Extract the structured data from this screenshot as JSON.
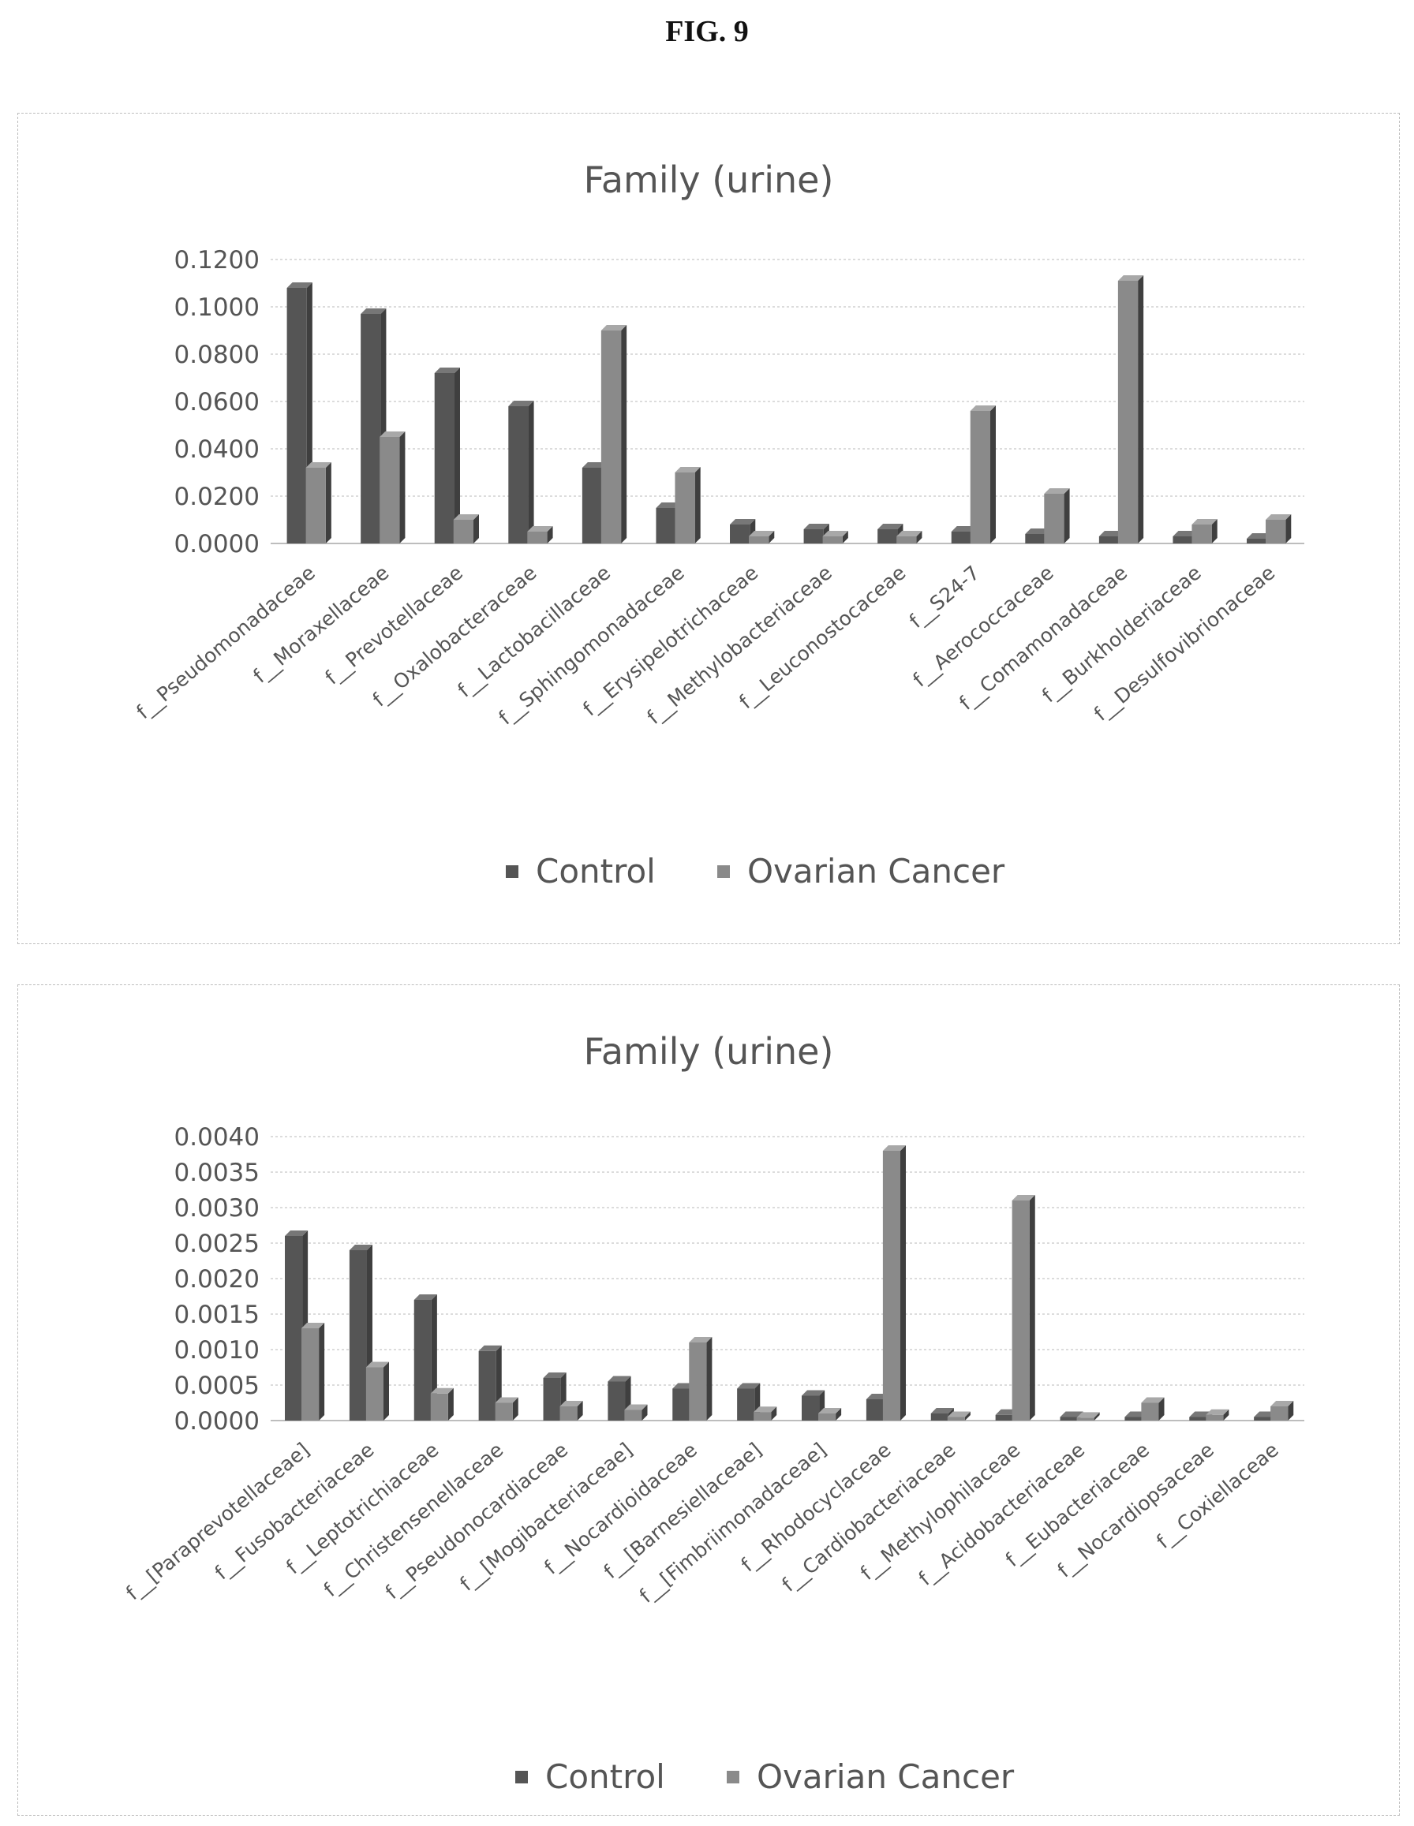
{
  "figure_label": "FIG. 9",
  "colors": {
    "control": "#555555",
    "ovarian_cancer": "#8a8a8a",
    "grid": "#d0d0d0",
    "text": "#555555"
  },
  "chart_data": [
    {
      "type": "bar",
      "title": "Family (urine)",
      "xlabel": "",
      "ylabel": "",
      "ylim": [
        0,
        0.12
      ],
      "yticks": [
        "0.0000",
        "0.0200",
        "0.0400",
        "0.0600",
        "0.0800",
        "0.1000",
        "0.1200"
      ],
      "grid": true,
      "legend_position": "bottom",
      "categories": [
        "f__Pseudomonadaceae",
        "f__Moraxellaceae",
        "f__Prevotellaceae",
        "f__Oxalobacteraceae",
        "f__Lactobacillaceae",
        "f__Sphingomonadaceae",
        "f__Erysipelotrichaceae",
        "f__Methylobacteriaceae",
        "f__Leuconostocaceae",
        "f__S24-7",
        "f__Aerococcaceae",
        "f__Comamonadaceae",
        "f__Burkholderiaceae",
        "f__Desulfovibrionaceae"
      ],
      "series": [
        {
          "name": "Control",
          "values": [
            0.108,
            0.097,
            0.072,
            0.058,
            0.032,
            0.015,
            0.008,
            0.006,
            0.006,
            0.005,
            0.004,
            0.003,
            0.003,
            0.002
          ]
        },
        {
          "name": "Ovarian Cancer",
          "values": [
            0.032,
            0.045,
            0.01,
            0.005,
            0.09,
            0.03,
            0.003,
            0.003,
            0.003,
            0.056,
            0.021,
            0.111,
            0.008,
            0.01
          ]
        }
      ]
    },
    {
      "type": "bar",
      "title": "Family (urine)",
      "xlabel": "",
      "ylabel": "",
      "ylim": [
        0,
        0.004
      ],
      "yticks": [
        "0.0000",
        "0.0005",
        "0.0010",
        "0.0015",
        "0.0020",
        "0.0025",
        "0.0030",
        "0.0035",
        "0.0040"
      ],
      "grid": true,
      "legend_position": "bottom",
      "categories": [
        "f__[Paraprevotellaceae]",
        "f__Fusobacteriaceae",
        "f__Leptotrichiaceae",
        "f__Christensenellaceae",
        "f__Pseudonocardiaceae",
        "f__[Mogibacteriaceae]",
        "f__Nocardioidaceae",
        "f__[Barnesiellaceae]",
        "f__[Fimbriimonadaceae]",
        "f__Rhodocyclaceae",
        "f__Cardiobacteriaceae",
        "f__Methylophilaceae",
        "f__Acidobacteriaceae",
        "f__Eubacteriaceae",
        "f__Nocardiopsaceae",
        "f__Coxiellaceae"
      ],
      "series": [
        {
          "name": "Control",
          "values": [
            0.0026,
            0.0024,
            0.0017,
            0.00098,
            0.0006,
            0.00055,
            0.00045,
            0.00045,
            0.00035,
            0.0003,
            0.0001,
            8e-05,
            5e-05,
            5e-05,
            5e-05,
            5e-05
          ]
        },
        {
          "name": "Ovarian Cancer",
          "values": [
            0.0013,
            0.00075,
            0.00038,
            0.00025,
            0.0002,
            0.00015,
            0.0011,
            0.00012,
            0.0001,
            0.0038,
            5e-05,
            0.0031,
            4e-05,
            0.00025,
            8e-05,
            0.0002
          ]
        }
      ]
    }
  ]
}
